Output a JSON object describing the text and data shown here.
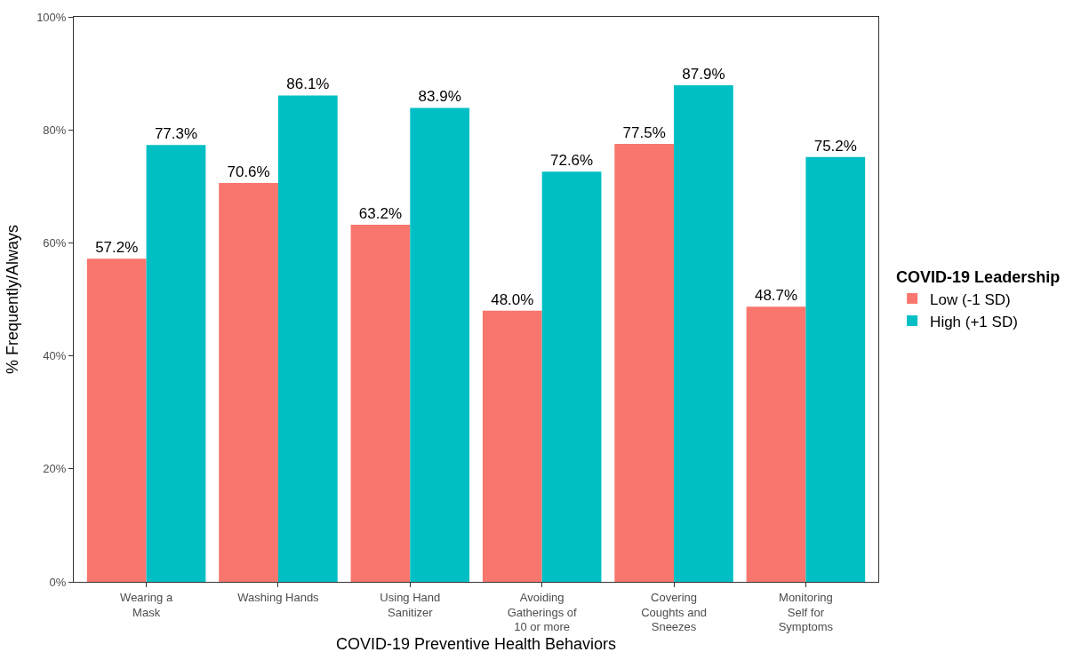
{
  "chart_data": {
    "type": "bar",
    "xlabel": "COVID-19 Preventive Health Behaviors",
    "ylabel": "% Frequently/Always",
    "legend_title": "COVID-19 Leadership",
    "legend": "right",
    "categories": [
      "Wearing a\nMask",
      "Washing Hands",
      "Using Hand\nSanitizer",
      "Avoiding\nGatherings of\n10 or more",
      "Covering\nCoughts and\nSneezes",
      "Monitoring\nSelf for\nSymptoms"
    ],
    "series": [
      {
        "name": "Low (-1 SD)",
        "color": "#f8766d",
        "values": [
          57.2,
          70.6,
          63.2,
          48.0,
          77.5,
          48.7
        ],
        "value_labels": [
          "57.2%",
          "70.6%",
          "63.2%",
          "48.0%",
          "77.5%",
          "48.7%"
        ]
      },
      {
        "name": "High (+1 SD)",
        "color": "#00bfc4",
        "values": [
          77.3,
          86.1,
          83.9,
          72.6,
          87.9,
          75.2
        ],
        "value_labels": [
          "77.3%",
          "86.1%",
          "83.9%",
          "72.6%",
          "87.9%",
          "75.2%"
        ]
      }
    ],
    "ylim": [
      0,
      100
    ],
    "yticks": [
      {
        "value": 0,
        "label": "0%"
      },
      {
        "value": 20,
        "label": "20%"
      },
      {
        "value": 40,
        "label": "40%"
      },
      {
        "value": 60,
        "label": "60%"
      },
      {
        "value": 80,
        "label": "80%"
      },
      {
        "value": 100,
        "label": "100%"
      }
    ],
    "grid": false
  }
}
